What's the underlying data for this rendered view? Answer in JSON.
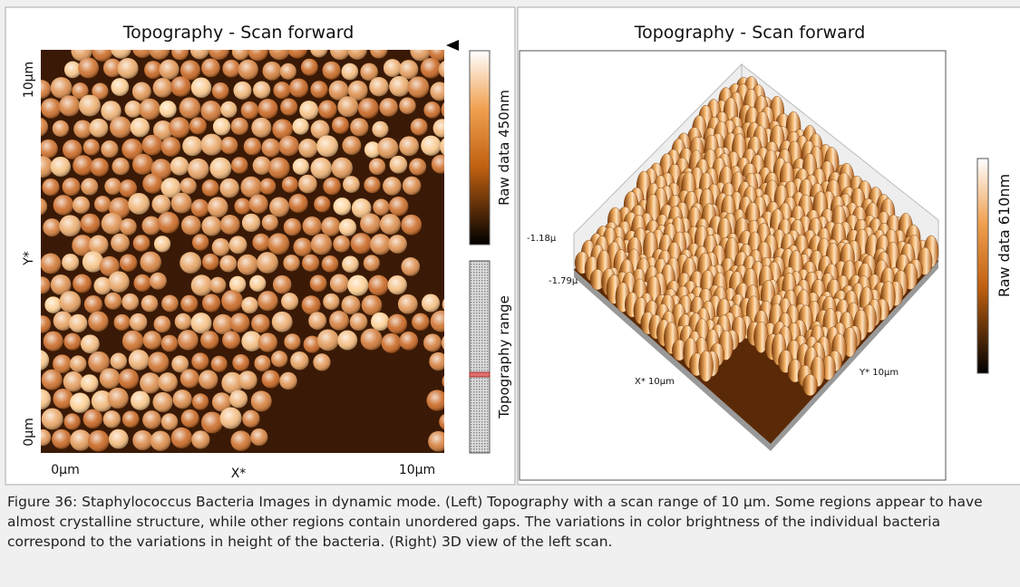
{
  "left": {
    "title": "Topography - Scan forward",
    "y_top": "10µm",
    "y_axis": "Y*",
    "y_bottom": "0µm",
    "x_left": "0µm",
    "x_axis": "X*",
    "x_right": "10µm",
    "colorbar_label": "Raw data 450nm",
    "range_label": "Topography range"
  },
  "right": {
    "title": "Topography - Scan forward",
    "z_top": "-1.18µ",
    "z_bottom": "-1.79µ",
    "x_label": "X* 10µm",
    "y_label": "Y* 10µm",
    "colorbar_label": "Raw data 610nm"
  },
  "caption": "Figure 36: Staphylococcus Bacteria Images in dynamic mode. (Left) Topography with a scan range of 10 µm. Some regions appear to have almost crystalline structure, while other regions contain unordered gaps. The variations in color brightness of the individual bacteria correspond to the variations in height of the bacteria. (Right) 3D view of the left scan."
}
